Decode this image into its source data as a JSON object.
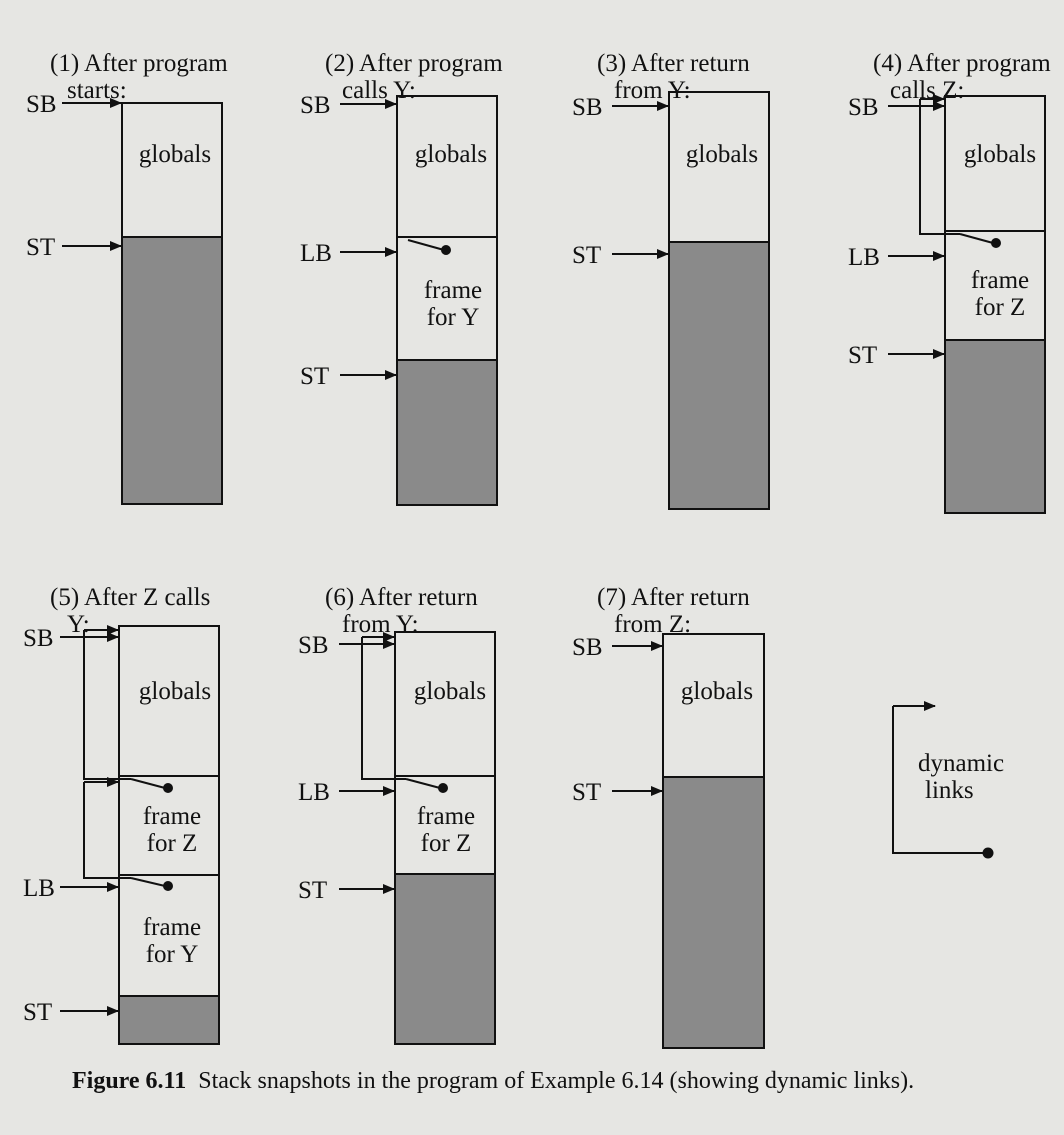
{
  "panels": [
    {
      "number": "(1)",
      "title": "After program",
      "subtitle": "starts:"
    },
    {
      "number": "(2)",
      "title": "After program",
      "subtitle": "calls Y:"
    },
    {
      "number": "(3)",
      "title": "After return",
      "subtitle": "from Y:"
    },
    {
      "number": "(4)",
      "title": "After program",
      "subtitle": "calls Z:"
    },
    {
      "number": "(5)",
      "title": "After Z calls",
      "subtitle": "Y:"
    },
    {
      "number": "(6)",
      "title": "After return",
      "subtitle": "from Y:"
    },
    {
      "number": "(7)",
      "title": "After return",
      "subtitle": "from Z:"
    }
  ],
  "labels": {
    "sb": "SB",
    "st": "ST",
    "lb": "LB",
    "globals": "globals",
    "frame": "frame",
    "for_y": "for Y",
    "for_z": "for Z"
  },
  "legend": {
    "line1": "dynamic",
    "line2": "links"
  },
  "figure_caption": {
    "label": "Figure 6.11",
    "text": "Stack snapshots in the program of Example 6.14 (showing dynamic links)."
  }
}
